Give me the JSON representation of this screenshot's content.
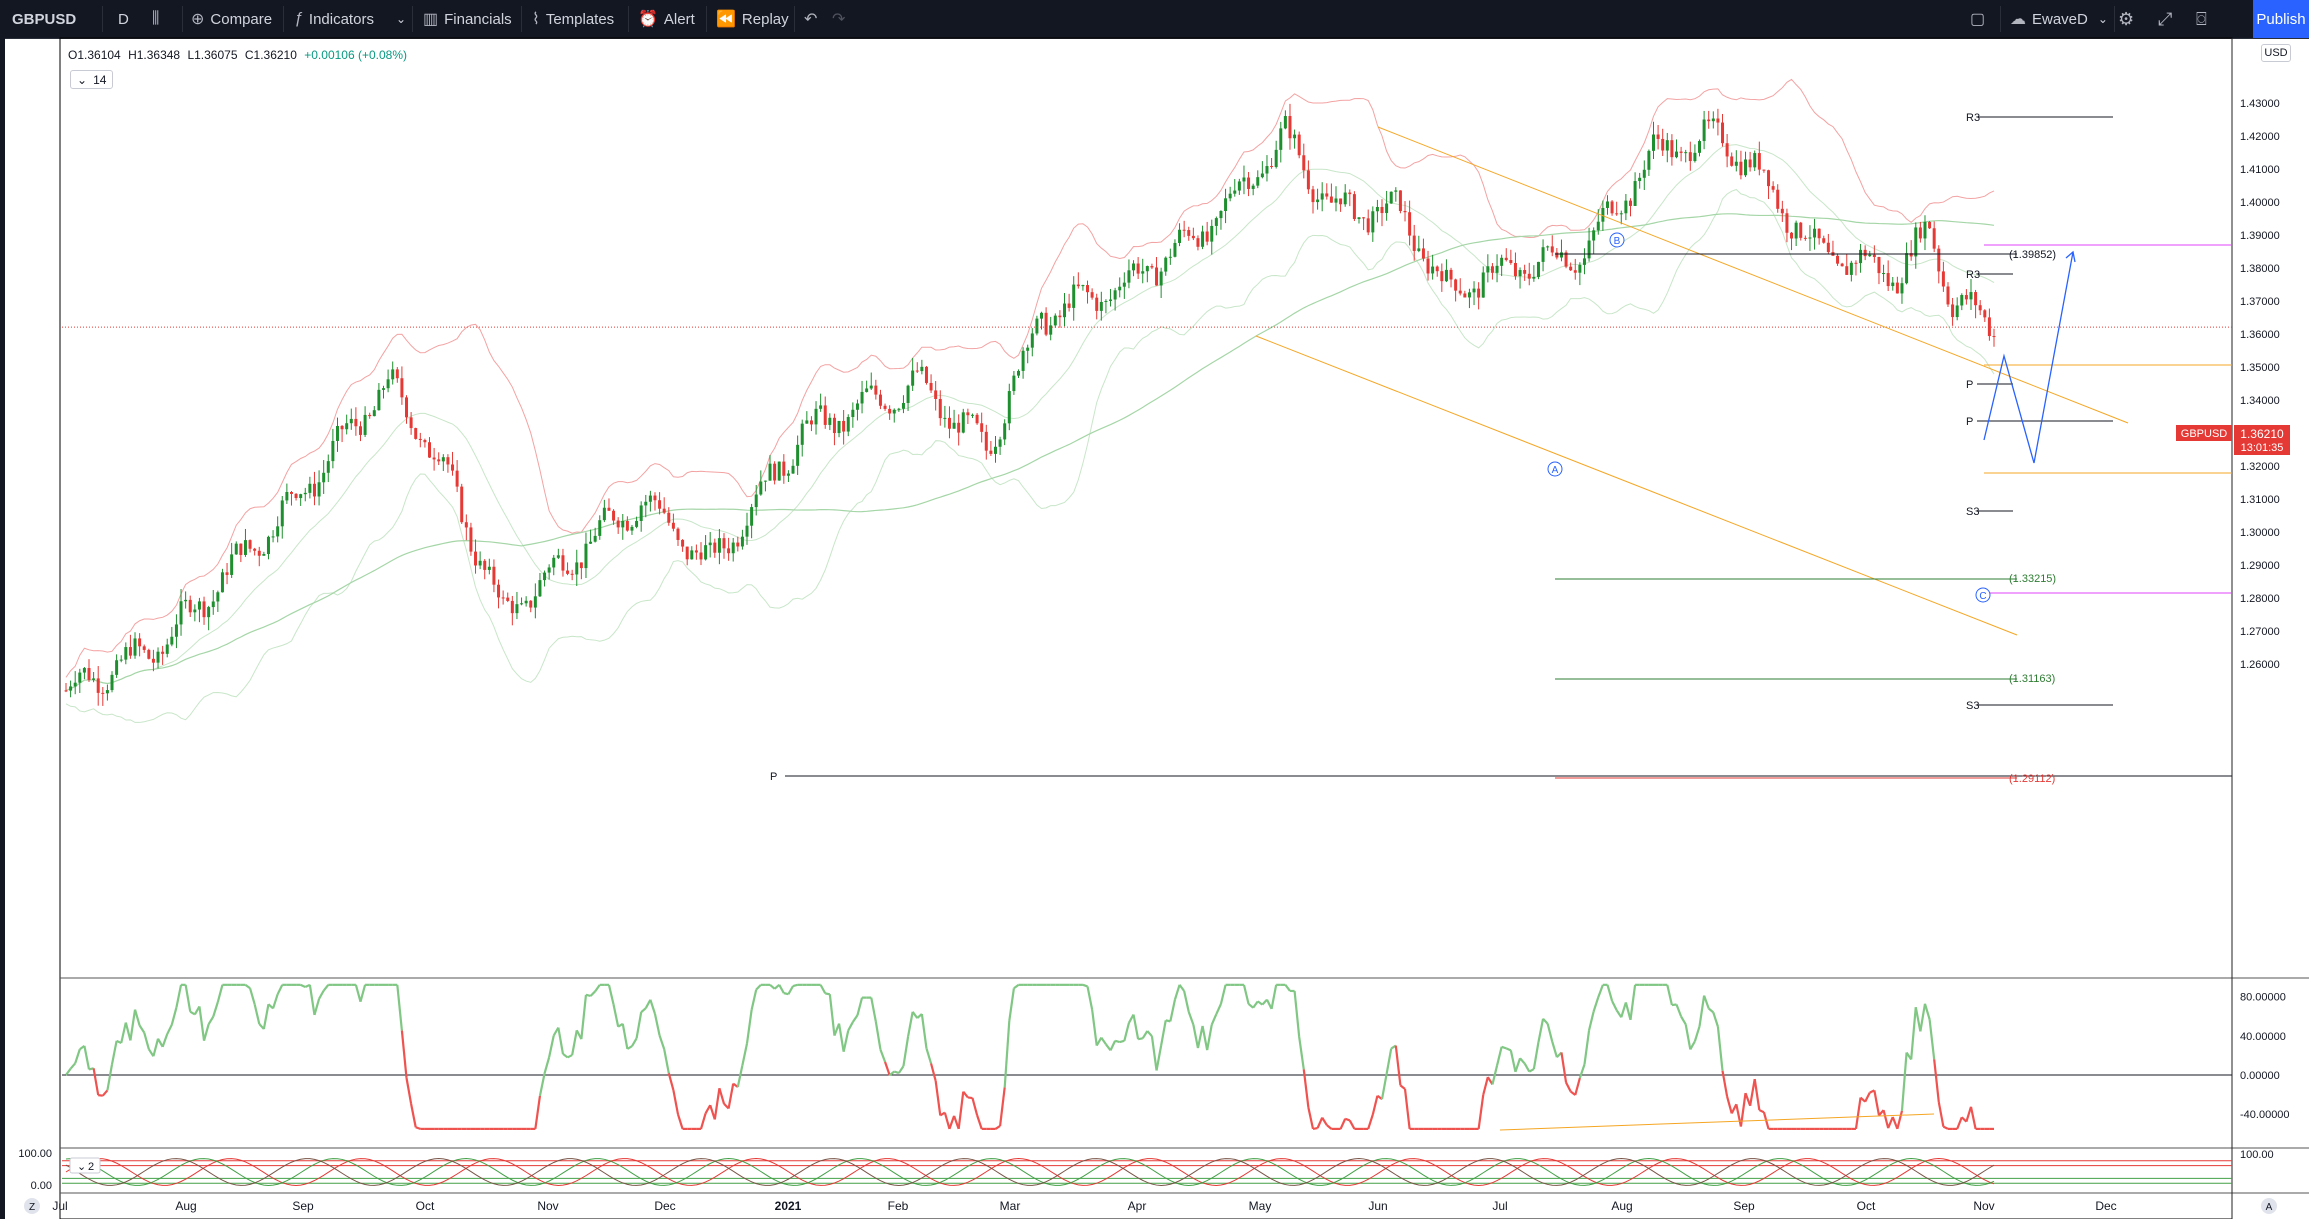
{
  "toolbar": {
    "symbol": "GBPUSD",
    "interval": "D",
    "compare": "Compare",
    "indicators": "Indicators",
    "financials": "Financials",
    "templates": "Templates",
    "alert": "Alert",
    "replay": "Replay",
    "layout_name": "EwaveD",
    "publish": "Publish"
  },
  "legend": {
    "open": "O1.36104",
    "high": "H1.36348",
    "low": "L1.36075",
    "close": "C1.36210",
    "change": "+0.00106 (+0.08%)",
    "indicator_param": "14",
    "subchart_param": "2"
  },
  "price_axis": {
    "currency": "USD",
    "labels": [
      "1.43000",
      "1.42000",
      "1.41000",
      "1.40000",
      "1.39000",
      "1.38000",
      "1.37000",
      "1.36000",
      "1.35000",
      "1.34000",
      "1.33000",
      "1.32000",
      "1.31000",
      "1.30000",
      "1.29000",
      "1.28000",
      "1.27000",
      "1.26000"
    ],
    "last_symbol": "GBPUSD",
    "last_price": "1.36210",
    "countdown": "13:01:35"
  },
  "osc_axis": {
    "labels": [
      "80.00000",
      "40.00000",
      "0.00000",
      "-40.00000"
    ]
  },
  "sub_axis": {
    "left_labels": [
      "100.00",
      "0.00"
    ],
    "right_label": "100.00"
  },
  "time_axis": {
    "labels": [
      "Jul",
      "Aug",
      "Sep",
      "Oct",
      "Nov",
      "Dec",
      "2021",
      "Feb",
      "Mar",
      "Apr",
      "May",
      "Jun",
      "Jul",
      "Aug",
      "Sep",
      "Oct",
      "Nov",
      "Dec"
    ]
  },
  "annotations": {
    "fib_top": "(1.39852)",
    "fib_mid": "(1.33215)",
    "fib_low": "(1.31163)",
    "fib_bottom": "(1.29112)",
    "r3_a": "R3",
    "r3_b": "R3",
    "p_main": "P",
    "p_a": "P",
    "p_b": "P",
    "s3_a": "S3",
    "s3_b": "S3",
    "wave_a": "A",
    "wave_b": "B",
    "wave_c": "C",
    "axis_z": "Z",
    "axis_a": "A"
  },
  "colors": {
    "up": "#1e8f2e",
    "down": "#e53935",
    "bb": "#f3a3a3",
    "ma": "#a5d6a7",
    "channel": "#f5a623",
    "wave": "#2962ff"
  }
}
